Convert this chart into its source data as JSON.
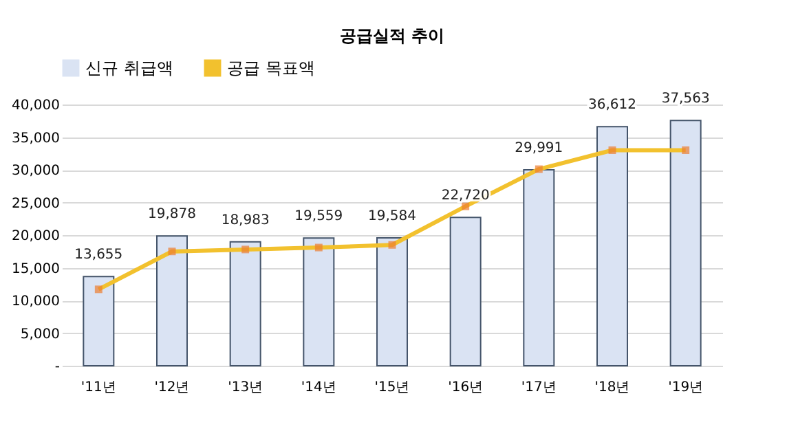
{
  "chart_data": {
    "type": "bar",
    "title": "공급실적 추이",
    "categories": [
      "'11년",
      "'12년",
      "'13년",
      "'14년",
      "'15년",
      "'16년",
      "'17년",
      "'18년",
      "'19년"
    ],
    "series": [
      {
        "name": "신규 취급액",
        "color": "#dae3f3",
        "values": [
          13655,
          19878,
          18983,
          19559,
          19584,
          22720,
          29991,
          36612,
          37563
        ],
        "value_labels": [
          "13,655",
          "19,878",
          "18,983",
          "19,559",
          "19,584",
          "22,720",
          "29,991",
          "36,612",
          "37,563"
        ]
      },
      {
        "name": "공급 목표액",
        "type": "line",
        "color": "#f2c12e",
        "marker": "square",
        "values": [
          11700,
          17500,
          17800,
          18100,
          18500,
          24400,
          30100,
          33000,
          33000
        ]
      }
    ],
    "ylim": [
      0,
      40000
    ],
    "yticks": [
      {
        "value": 0,
        "label": "-"
      },
      {
        "value": 5000,
        "label": "5,000"
      },
      {
        "value": 10000,
        "label": "10,000"
      },
      {
        "value": 15000,
        "label": "15,000"
      },
      {
        "value": 20000,
        "label": "20,000"
      },
      {
        "value": 25000,
        "label": "25,000"
      },
      {
        "value": 30000,
        "label": "30,000"
      },
      {
        "value": 35000,
        "label": "35,000"
      },
      {
        "value": 40000,
        "label": "40,000"
      }
    ],
    "grid": "y",
    "legend": "top"
  }
}
